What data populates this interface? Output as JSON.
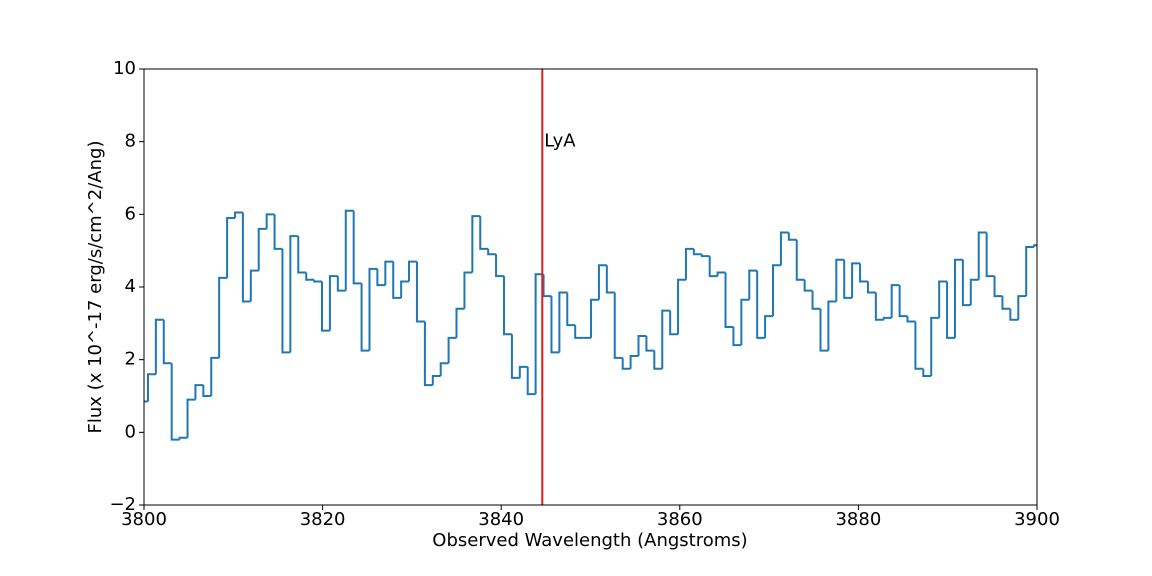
{
  "chart_data": {
    "type": "step",
    "xlabel": "Observed Wavelength (Angstroms)",
    "ylabel": "Flux (x 10^-17 erg/s/cm^2/Ang)",
    "xlim": [
      3800,
      3900
    ],
    "ylim": [
      -2,
      10
    ],
    "xticks": [
      3800,
      3820,
      3840,
      3860,
      3880,
      3900
    ],
    "yticks": [
      {
        "value": -2,
        "label": "−2"
      },
      0,
      2,
      4,
      6,
      8,
      10
    ],
    "color": "#1f77b4",
    "x": [
      3800.0,
      3800.89,
      3801.77,
      3802.66,
      3803.54,
      3804.43,
      3805.32,
      3806.2,
      3807.09,
      3807.97,
      3808.86,
      3809.75,
      3810.63,
      3811.52,
      3812.4,
      3813.29,
      3814.18,
      3815.06,
      3815.95,
      3816.83,
      3817.72,
      3818.61,
      3819.49,
      3820.38,
      3821.26,
      3822.15,
      3823.04,
      3823.92,
      3824.81,
      3825.69,
      3826.58,
      3827.47,
      3828.35,
      3829.24,
      3830.12,
      3831.01,
      3831.9,
      3832.78,
      3833.67,
      3834.55,
      3835.44,
      3836.33,
      3837.21,
      3838.1,
      3838.98,
      3839.87,
      3840.76,
      3841.64,
      3842.53,
      3843.41,
      3844.3,
      3845.19,
      3846.07,
      3846.96,
      3847.84,
      3848.73,
      3849.62,
      3850.5,
      3851.39,
      3852.27,
      3853.16,
      3854.05,
      3854.93,
      3855.82,
      3856.7,
      3857.59,
      3858.48,
      3859.36,
      3860.25,
      3861.13,
      3862.02,
      3862.91,
      3863.79,
      3864.68,
      3865.56,
      3866.45,
      3867.34,
      3868.22,
      3869.11,
      3869.99,
      3870.88,
      3871.77,
      3872.65,
      3873.54,
      3874.42,
      3875.31,
      3876.2,
      3877.08,
      3877.97,
      3878.85,
      3879.74,
      3880.63,
      3881.51,
      3882.4,
      3883.28,
      3884.17,
      3885.06,
      3885.94,
      3886.83,
      3887.71,
      3888.6,
      3889.49,
      3890.37,
      3891.26,
      3892.14,
      3893.03,
      3893.92,
      3894.8,
      3895.69,
      3896.57,
      3897.46,
      3898.35,
      3899.23,
      3900.12
    ],
    "values": [
      0.85,
      1.6,
      3.1,
      1.9,
      -0.2,
      -0.15,
      0.9,
      1.3,
      1.0,
      2.05,
      4.25,
      5.9,
      6.05,
      3.6,
      4.45,
      5.6,
      6.0,
      5.05,
      2.2,
      5.4,
      4.4,
      4.2,
      4.15,
      2.8,
      4.3,
      3.9,
      6.1,
      4.1,
      2.25,
      4.5,
      4.05,
      4.7,
      3.7,
      4.15,
      4.7,
      3.05,
      1.3,
      1.55,
      1.9,
      2.6,
      3.4,
      4.4,
      5.95,
      5.05,
      4.9,
      4.3,
      2.7,
      1.5,
      1.8,
      1.05,
      4.35,
      3.75,
      2.2,
      3.85,
      2.95,
      2.6,
      2.6,
      3.65,
      4.6,
      3.85,
      2.05,
      1.75,
      2.1,
      2.65,
      2.25,
      1.75,
      3.35,
      2.7,
      4.2,
      5.05,
      4.9,
      4.85,
      4.3,
      4.4,
      2.9,
      2.4,
      3.65,
      4.45,
      2.6,
      3.2,
      4.6,
      5.5,
      5.3,
      4.2,
      3.9,
      3.4,
      2.25,
      3.6,
      4.75,
      3.7,
      4.65,
      4.15,
      3.85,
      3.1,
      3.15,
      4.05,
      3.2,
      3.05,
      1.75,
      1.55,
      3.15,
      4.15,
      2.6,
      4.75,
      3.5,
      4.2,
      5.5,
      4.3,
      3.75,
      3.4,
      3.1,
      3.75,
      5.1,
      5.15
    ],
    "annotation": {
      "text": "LyA",
      "x": 3844.6,
      "y": 8,
      "color": "#e41a1c"
    }
  }
}
